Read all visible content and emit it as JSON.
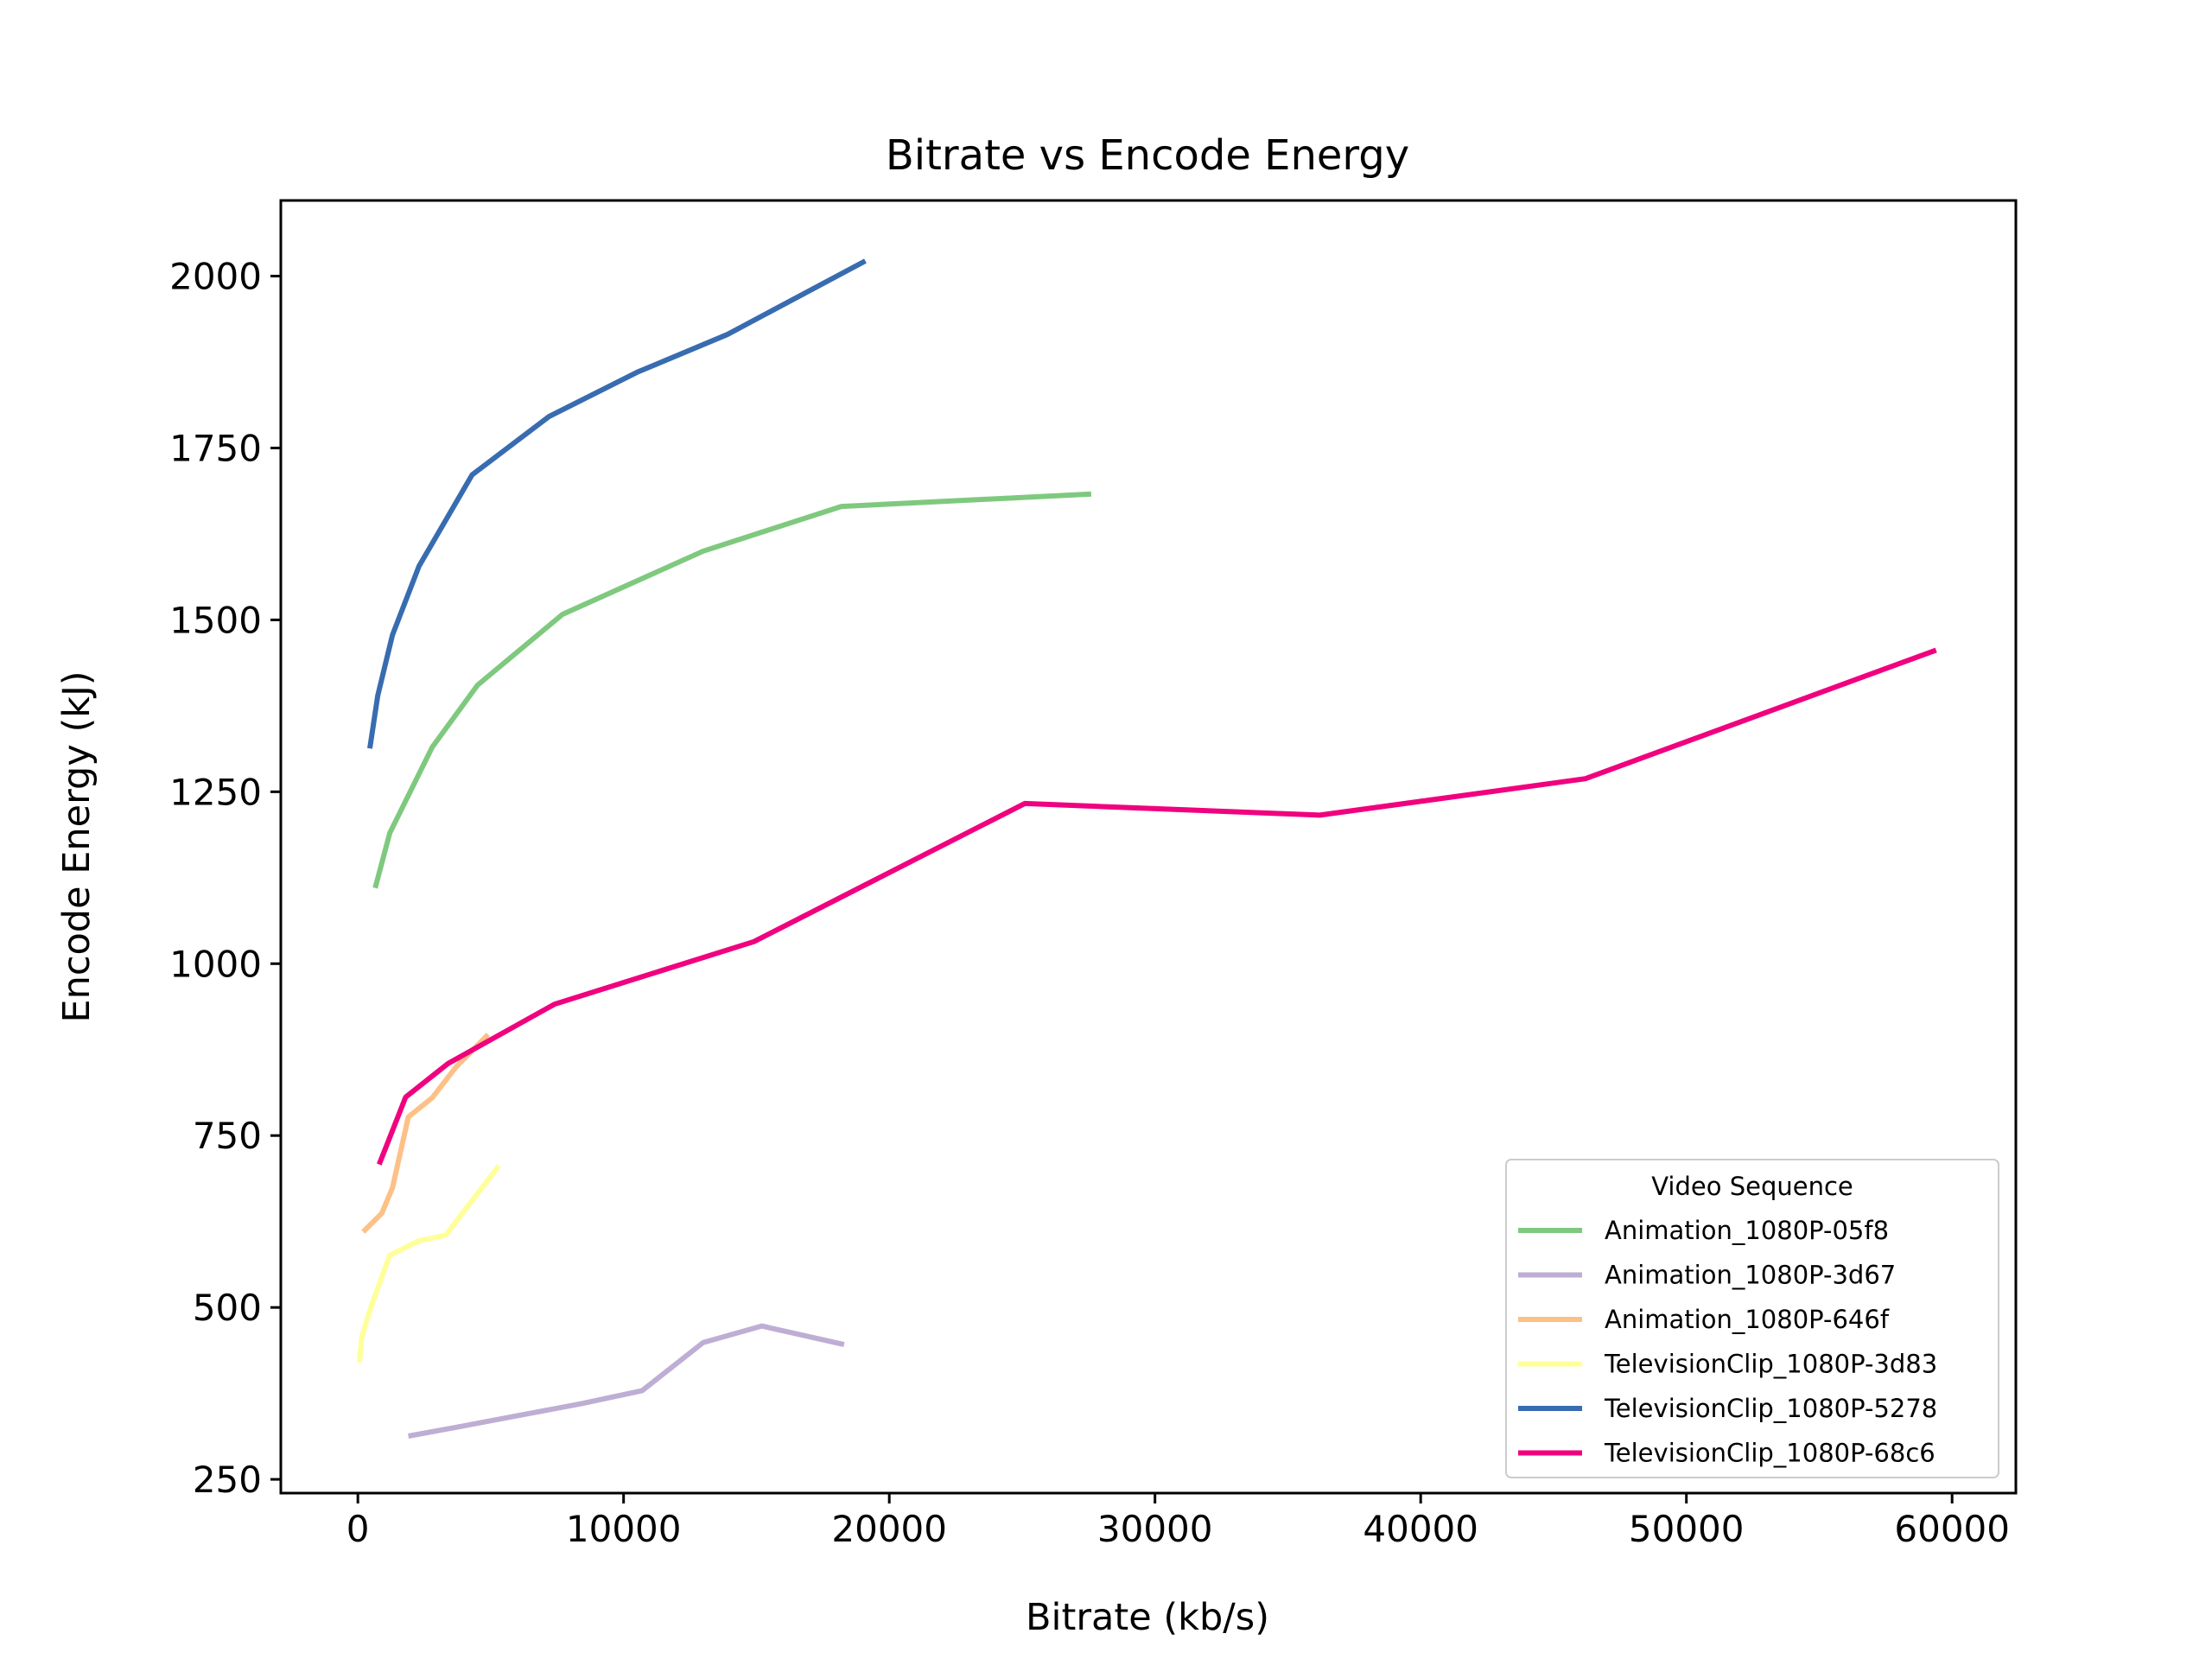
{
  "chart_data": {
    "type": "line",
    "title": "Bitrate vs Encode Energy",
    "xlabel": "Bitrate (kb/s)",
    "ylabel": "Encode Energy (kJ)",
    "xlim": [
      -2900,
      62400
    ],
    "ylim": [
      230,
      2110
    ],
    "xticks": [
      0,
      10000,
      20000,
      30000,
      40000,
      50000,
      60000
    ],
    "yticks": [
      250,
      500,
      750,
      1000,
      1250,
      1500,
      1750,
      2000
    ],
    "grid": false,
    "legend": {
      "title": "Video Sequence",
      "position": "lower-right"
    },
    "series": [
      {
        "name": "Animation_1080P-05f8",
        "color": "#7fc97f",
        "points": [
          [
            650,
            1110
          ],
          [
            1200,
            1190
          ],
          [
            2800,
            1315
          ],
          [
            4500,
            1405
          ],
          [
            7700,
            1508
          ],
          [
            13000,
            1600
          ],
          [
            18200,
            1665
          ],
          [
            27600,
            1683
          ]
        ]
      },
      {
        "name": "Animation_1080P-3d67",
        "color": "#beaed4",
        "points": [
          [
            1900,
            313
          ],
          [
            3600,
            325
          ],
          [
            6200,
            344
          ],
          [
            8400,
            360
          ],
          [
            10700,
            379
          ],
          [
            13000,
            449
          ],
          [
            15200,
            473
          ],
          [
            18300,
            446
          ]
        ]
      },
      {
        "name": "Animation_1080P-646f",
        "color": "#fdc086",
        "points": [
          [
            200,
            610
          ],
          [
            900,
            637
          ],
          [
            1300,
            674
          ],
          [
            1900,
            777
          ],
          [
            2800,
            805
          ],
          [
            3700,
            850
          ],
          [
            4900,
            897
          ]
        ]
      },
      {
        "name": "TelevisionClip_1080P-3d83",
        "color": "#ffff99",
        "points": [
          [
            60,
            420
          ],
          [
            150,
            458
          ],
          [
            500,
            502
          ],
          [
            1200,
            576
          ],
          [
            2300,
            597
          ],
          [
            3300,
            605
          ],
          [
            5300,
            706
          ]
        ]
      },
      {
        "name": "TelevisionClip_1080P-5278",
        "color": "#386cb0",
        "points": [
          [
            450,
            1313
          ],
          [
            750,
            1390
          ],
          [
            1300,
            1478
          ],
          [
            2300,
            1578
          ],
          [
            4300,
            1711
          ],
          [
            7200,
            1796
          ],
          [
            10500,
            1860
          ],
          [
            13900,
            1915
          ],
          [
            19100,
            2022
          ]
        ]
      },
      {
        "name": "TelevisionClip_1080P-68c6",
        "color": "#f0027f",
        "points": [
          [
            800,
            708
          ],
          [
            1800,
            806
          ],
          [
            3400,
            855
          ],
          [
            7400,
            941
          ],
          [
            14900,
            1032
          ],
          [
            25100,
            1233
          ],
          [
            36200,
            1216
          ],
          [
            46200,
            1269
          ],
          [
            59400,
            1456
          ]
        ]
      }
    ]
  }
}
